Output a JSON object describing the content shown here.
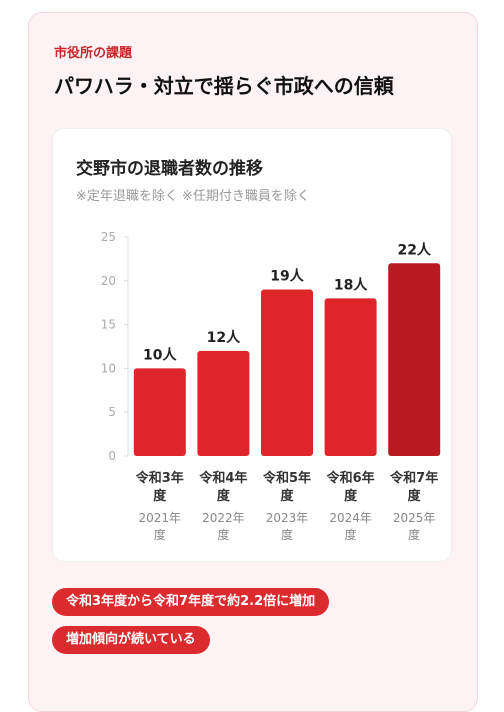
{
  "header": {
    "label": "市役所の課題",
    "title": "パワハラ・対立で揺らぐ市政への信頼"
  },
  "chart_data": {
    "type": "bar",
    "title": "交野市の退職者数の推移",
    "subtitle": "※定年退職を除く ※任期付き職員を除く",
    "categories": [
      "令和3年度",
      "令和4年度",
      "令和5年度",
      "令和6年度",
      "令和7年度"
    ],
    "sublabels": [
      "2021年度",
      "2022年度",
      "2023年度",
      "2024年度",
      "2025年度"
    ],
    "values": [
      10,
      12,
      19,
      18,
      22
    ],
    "value_labels": [
      "10人",
      "12人",
      "19人",
      "18人",
      "22人"
    ],
    "colors": [
      "#dc2629",
      "#dc2629",
      "#dc2629",
      "#dc2629",
      "#b81c22"
    ],
    "ylim": [
      0,
      25
    ],
    "yticks": [
      0,
      5,
      10,
      15,
      20,
      25
    ]
  },
  "notes": [
    "令和3年度から令和7年度で約2.2倍に増加",
    "増加傾向が続いている"
  ]
}
